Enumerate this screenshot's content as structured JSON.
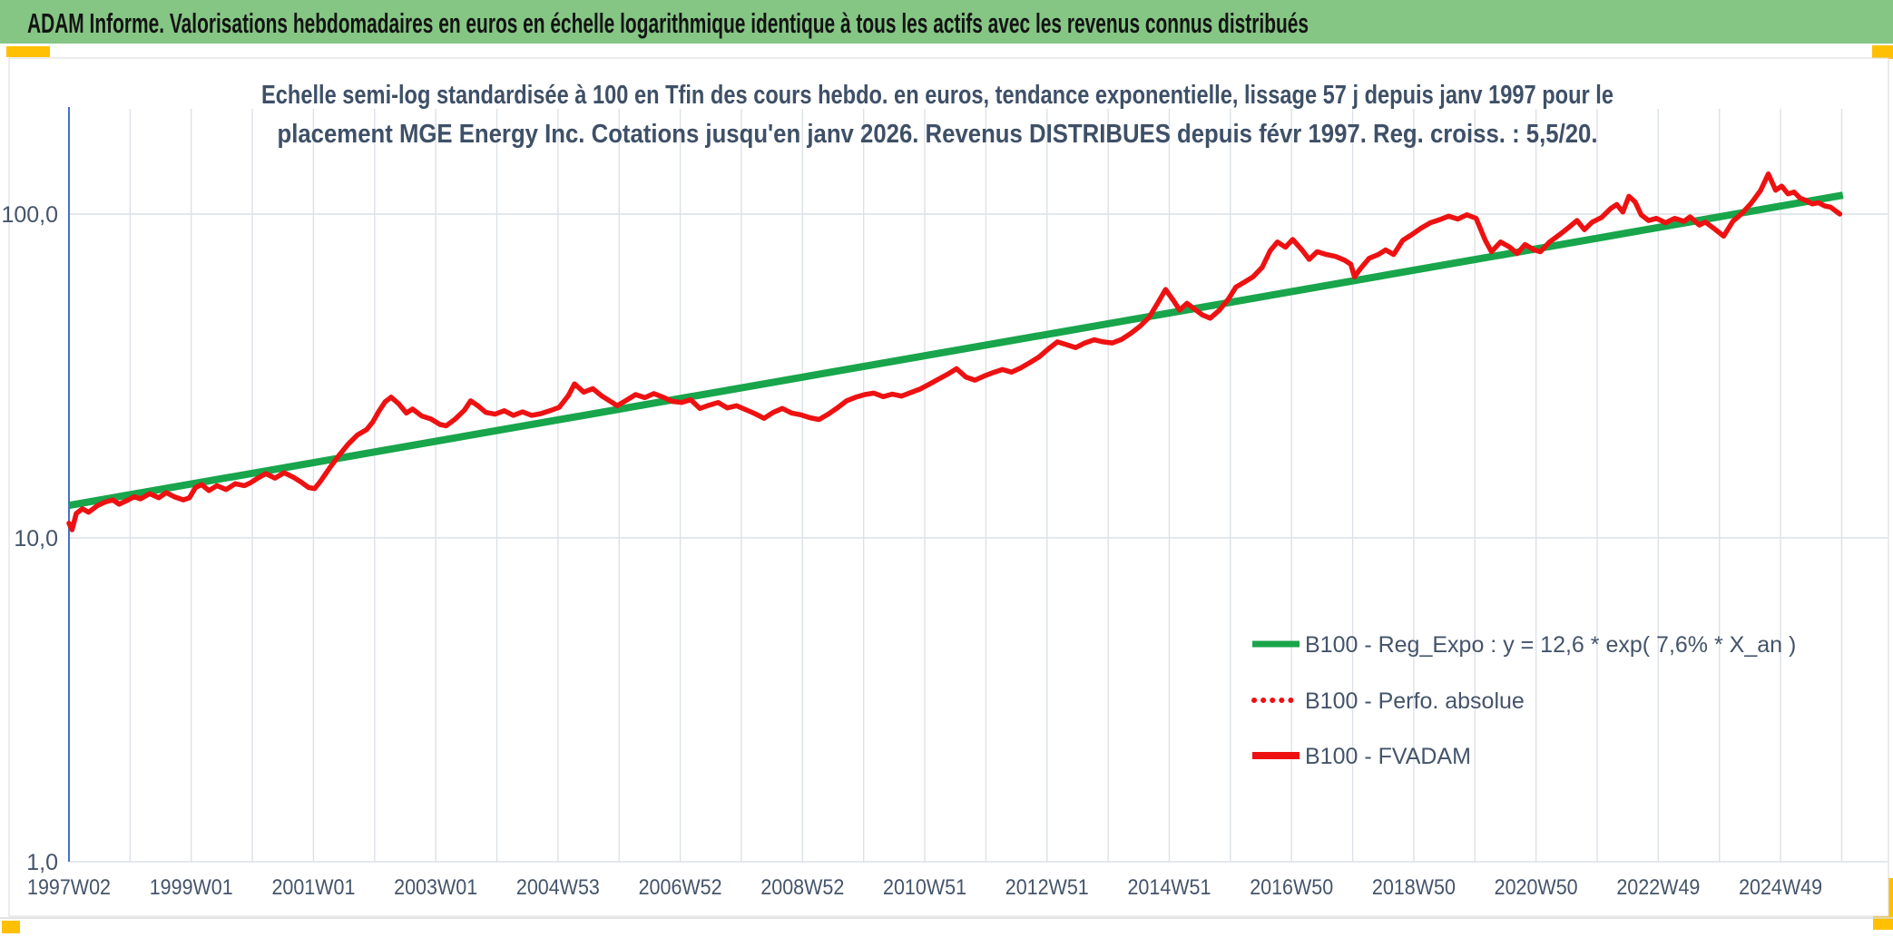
{
  "header": {
    "title": "ADAM Informe. Valorisations hebdomadaires en euros en échelle logarithmique identique à tous les actifs avec les revenus connus distribués"
  },
  "chart_title": {
    "line1": "Echelle semi-log standardisée à 100 en Tfin des cours hebdo. en euros, tendance exponentielle, lissage 57 j depuis janv 1997 pour le",
    "line2": "placement MGE Energy Inc. Cotations jusqu'en janv 2026. Revenus DISTRIBUES depuis févr 1997. Reg. croiss. : 5,5/20."
  },
  "legend": {
    "items": [
      {
        "label": "B100 - Reg_Expo : y = 12,6 * exp( 7,6% *  X_an )",
        "style": "solid",
        "color": "#18a54b"
      },
      {
        "label": "B100 - Perfo. absolue",
        "style": "dotted",
        "color": "#ee1111"
      },
      {
        "label": "B100 - FVADAM",
        "style": "solid-thick",
        "color": "#ee1111"
      }
    ]
  },
  "colors": {
    "banner_green": "#85c684",
    "accent_yellow": "#ffc003",
    "banner_text": "#141414",
    "title_text": "#3e5067",
    "axis_text": "#44546a",
    "gridline": "#dce1e8",
    "y_axis_line": "#4472c4",
    "trend_green": "#18a54b",
    "series_red": "#ee1111",
    "panel_border": "#d9d9d9"
  },
  "chart_data": {
    "type": "line",
    "title": "Echelle semi-log standardisée à 100 en Tfin des cours hebdo. en euros, tendance exponentielle, lissage 57 j depuis janv 1997 pour le placement MGE Energy Inc. Cotations jusqu'en janv 2026. Revenus DISTRIBUES depuis févr 1997. Reg. croiss. : 5,5/20.",
    "x_axis": {
      "tick_labels": [
        "1997W02",
        "1999W01",
        "2001W01",
        "2003W01",
        "2004W53",
        "2006W52",
        "2008W52",
        "2010W51",
        "2012W51",
        "2014W51",
        "2016W50",
        "2018W50",
        "2020W50",
        "2022W49",
        "2024W49"
      ],
      "start_year": 1997.03,
      "years_per_tick": 2,
      "end_year": 2026.05
    },
    "y_axis": {
      "scale": "log",
      "ticks": [
        {
          "value": 1.0,
          "label": "1,0"
        },
        {
          "value": 10.0,
          "label": "10,0"
        },
        {
          "value": 100.0,
          "label": "100,0"
        }
      ],
      "range": [
        1.0,
        200.0
      ],
      "grid": "decades-only"
    },
    "series": [
      {
        "name": "B100 - Reg_Expo",
        "kind": "exponential_trend",
        "formula": "y = 12,6 * exp( 7,6% *  X_an )",
        "a": 12.6,
        "rate_per_year": 0.076,
        "x_start_year": 1997.03,
        "x_end_year": 2026.05
      },
      {
        "name": "B100 - Perfo. absolue",
        "kind": "dotted-overlay",
        "points_same_as": "B100 - FVADAM"
      },
      {
        "name": "B100 - FVADAM",
        "kind": "weekly-line",
        "points": [
          [
            1997.03,
            11.1
          ],
          [
            1997.08,
            10.6
          ],
          [
            1997.15,
            11.9
          ],
          [
            1997.25,
            12.3
          ],
          [
            1997.35,
            12.0
          ],
          [
            1997.5,
            12.6
          ],
          [
            1997.62,
            12.9
          ],
          [
            1997.75,
            13.1
          ],
          [
            1997.85,
            12.7
          ],
          [
            1998.0,
            13.1
          ],
          [
            1998.1,
            13.4
          ],
          [
            1998.2,
            13.2
          ],
          [
            1998.35,
            13.7
          ],
          [
            1998.5,
            13.3
          ],
          [
            1998.62,
            13.8
          ],
          [
            1998.75,
            13.4
          ],
          [
            1998.9,
            13.1
          ],
          [
            1999.0,
            13.3
          ],
          [
            1999.1,
            14.3
          ],
          [
            1999.2,
            14.6
          ],
          [
            1999.32,
            14.0
          ],
          [
            1999.45,
            14.5
          ],
          [
            1999.6,
            14.1
          ],
          [
            1999.75,
            14.7
          ],
          [
            1999.9,
            14.5
          ],
          [
            2000.0,
            14.8
          ],
          [
            2000.12,
            15.3
          ],
          [
            2000.25,
            15.8
          ],
          [
            2000.4,
            15.3
          ],
          [
            2000.55,
            15.9
          ],
          [
            2000.7,
            15.4
          ],
          [
            2000.82,
            14.9
          ],
          [
            2000.95,
            14.3
          ],
          [
            2001.05,
            14.2
          ],
          [
            2001.15,
            15.0
          ],
          [
            2001.3,
            16.5
          ],
          [
            2001.45,
            18.0
          ],
          [
            2001.6,
            19.5
          ],
          [
            2001.75,
            20.8
          ],
          [
            2001.9,
            21.6
          ],
          [
            2002.0,
            22.8
          ],
          [
            2002.1,
            24.6
          ],
          [
            2002.2,
            26.3
          ],
          [
            2002.3,
            27.2
          ],
          [
            2002.42,
            26.0
          ],
          [
            2002.55,
            24.3
          ],
          [
            2002.65,
            25.0
          ],
          [
            2002.8,
            23.8
          ],
          [
            2002.95,
            23.3
          ],
          [
            2003.1,
            22.4
          ],
          [
            2003.2,
            22.2
          ],
          [
            2003.35,
            23.3
          ],
          [
            2003.5,
            24.8
          ],
          [
            2003.6,
            26.5
          ],
          [
            2003.72,
            25.6
          ],
          [
            2003.85,
            24.4
          ],
          [
            2004.0,
            24.1
          ],
          [
            2004.15,
            24.7
          ],
          [
            2004.3,
            23.9
          ],
          [
            2004.45,
            24.5
          ],
          [
            2004.6,
            23.9
          ],
          [
            2004.75,
            24.2
          ],
          [
            2004.9,
            24.7
          ],
          [
            2005.05,
            25.3
          ],
          [
            2005.2,
            27.5
          ],
          [
            2005.3,
            29.9
          ],
          [
            2005.45,
            28.2
          ],
          [
            2005.6,
            28.9
          ],
          [
            2005.75,
            27.4
          ],
          [
            2005.9,
            26.3
          ],
          [
            2006.0,
            25.6
          ],
          [
            2006.15,
            26.6
          ],
          [
            2006.3,
            27.7
          ],
          [
            2006.45,
            27.1
          ],
          [
            2006.6,
            27.9
          ],
          [
            2006.75,
            27.2
          ],
          [
            2006.9,
            26.4
          ],
          [
            2007.05,
            26.2
          ],
          [
            2007.2,
            26.7
          ],
          [
            2007.35,
            25.1
          ],
          [
            2007.5,
            25.7
          ],
          [
            2007.65,
            26.2
          ],
          [
            2007.8,
            25.2
          ],
          [
            2007.95,
            25.6
          ],
          [
            2008.1,
            24.9
          ],
          [
            2008.25,
            24.2
          ],
          [
            2008.4,
            23.4
          ],
          [
            2008.55,
            24.4
          ],
          [
            2008.7,
            25.1
          ],
          [
            2008.85,
            24.3
          ],
          [
            2009.0,
            24.0
          ],
          [
            2009.15,
            23.5
          ],
          [
            2009.3,
            23.2
          ],
          [
            2009.45,
            24.1
          ],
          [
            2009.6,
            25.2
          ],
          [
            2009.75,
            26.5
          ],
          [
            2009.9,
            27.2
          ],
          [
            2010.05,
            27.7
          ],
          [
            2010.2,
            28.0
          ],
          [
            2010.35,
            27.3
          ],
          [
            2010.5,
            27.8
          ],
          [
            2010.65,
            27.4
          ],
          [
            2010.8,
            28.1
          ],
          [
            2010.95,
            28.8
          ],
          [
            2011.1,
            29.8
          ],
          [
            2011.25,
            30.9
          ],
          [
            2011.4,
            32.0
          ],
          [
            2011.55,
            33.3
          ],
          [
            2011.7,
            31.4
          ],
          [
            2011.85,
            30.7
          ],
          [
            2012.0,
            31.6
          ],
          [
            2012.15,
            32.4
          ],
          [
            2012.3,
            33.1
          ],
          [
            2012.45,
            32.5
          ],
          [
            2012.6,
            33.5
          ],
          [
            2012.75,
            34.8
          ],
          [
            2012.9,
            36.2
          ],
          [
            2013.05,
            38.3
          ],
          [
            2013.2,
            40.3
          ],
          [
            2013.35,
            39.5
          ],
          [
            2013.5,
            38.7
          ],
          [
            2013.65,
            40.0
          ],
          [
            2013.8,
            40.9
          ],
          [
            2013.95,
            40.3
          ],
          [
            2014.1,
            40.0
          ],
          [
            2014.25,
            41.0
          ],
          [
            2014.4,
            42.8
          ],
          [
            2014.55,
            45.0
          ],
          [
            2014.7,
            48.0
          ],
          [
            2014.85,
            53.5
          ],
          [
            2014.97,
            58.5
          ],
          [
            2015.1,
            54.0
          ],
          [
            2015.2,
            50.5
          ],
          [
            2015.32,
            53.0
          ],
          [
            2015.45,
            50.8
          ],
          [
            2015.57,
            48.8
          ],
          [
            2015.7,
            47.7
          ],
          [
            2015.85,
            50.5
          ],
          [
            2016.0,
            54.7
          ],
          [
            2016.12,
            59.5
          ],
          [
            2016.25,
            61.5
          ],
          [
            2016.4,
            64.0
          ],
          [
            2016.55,
            68.5
          ],
          [
            2016.68,
            77.0
          ],
          [
            2016.8,
            82.0
          ],
          [
            2016.93,
            79.0
          ],
          [
            2017.05,
            83.5
          ],
          [
            2017.2,
            77.5
          ],
          [
            2017.32,
            72.5
          ],
          [
            2017.45,
            76.5
          ],
          [
            2017.6,
            75.0
          ],
          [
            2017.75,
            74.0
          ],
          [
            2017.9,
            72.0
          ],
          [
            2018.0,
            70.0
          ],
          [
            2018.06,
            64.0
          ],
          [
            2018.15,
            67.5
          ],
          [
            2018.3,
            73.0
          ],
          [
            2018.45,
            75.0
          ],
          [
            2018.57,
            77.5
          ],
          [
            2018.7,
            75.0
          ],
          [
            2018.85,
            83.0
          ],
          [
            2019.0,
            86.5
          ],
          [
            2019.15,
            90.5
          ],
          [
            2019.3,
            94.0
          ],
          [
            2019.45,
            96.0
          ],
          [
            2019.6,
            98.5
          ],
          [
            2019.75,
            96.5
          ],
          [
            2019.9,
            99.5
          ],
          [
            2020.05,
            97.0
          ],
          [
            2020.2,
            83.0
          ],
          [
            2020.3,
            76.5
          ],
          [
            2020.45,
            82.0
          ],
          [
            2020.6,
            79.0
          ],
          [
            2020.72,
            75.5
          ],
          [
            2020.85,
            80.5
          ],
          [
            2021.0,
            77.5
          ],
          [
            2021.1,
            76.5
          ],
          [
            2021.25,
            82.0
          ],
          [
            2021.4,
            86.0
          ],
          [
            2021.55,
            90.5
          ],
          [
            2021.7,
            95.5
          ],
          [
            2021.82,
            89.5
          ],
          [
            2021.95,
            94.5
          ],
          [
            2022.1,
            97.5
          ],
          [
            2022.25,
            104.0
          ],
          [
            2022.35,
            107.0
          ],
          [
            2022.45,
            101.5
          ],
          [
            2022.55,
            113.5
          ],
          [
            2022.65,
            109.0
          ],
          [
            2022.75,
            99.5
          ],
          [
            2022.87,
            95.5
          ],
          [
            2023.0,
            97.0
          ],
          [
            2023.15,
            94.0
          ],
          [
            2023.3,
            97.0
          ],
          [
            2023.45,
            95.0
          ],
          [
            2023.55,
            98.0
          ],
          [
            2023.7,
            92.5
          ],
          [
            2023.8,
            94.5
          ],
          [
            2023.95,
            90.0
          ],
          [
            2024.1,
            85.5
          ],
          [
            2024.25,
            95.0
          ],
          [
            2024.4,
            100.5
          ],
          [
            2024.55,
            108.0
          ],
          [
            2024.7,
            118.0
          ],
          [
            2024.83,
            133.0
          ],
          [
            2024.95,
            118.5
          ],
          [
            2025.05,
            122.0
          ],
          [
            2025.15,
            115.5
          ],
          [
            2025.25,
            117.0
          ],
          [
            2025.35,
            112.0
          ],
          [
            2025.45,
            110.0
          ],
          [
            2025.55,
            107.5
          ],
          [
            2025.65,
            108.5
          ],
          [
            2025.75,
            106.0
          ],
          [
            2025.85,
            105.0
          ],
          [
            2026.0,
            100.0
          ]
        ]
      }
    ],
    "legend_position": "inside-lower-right"
  }
}
